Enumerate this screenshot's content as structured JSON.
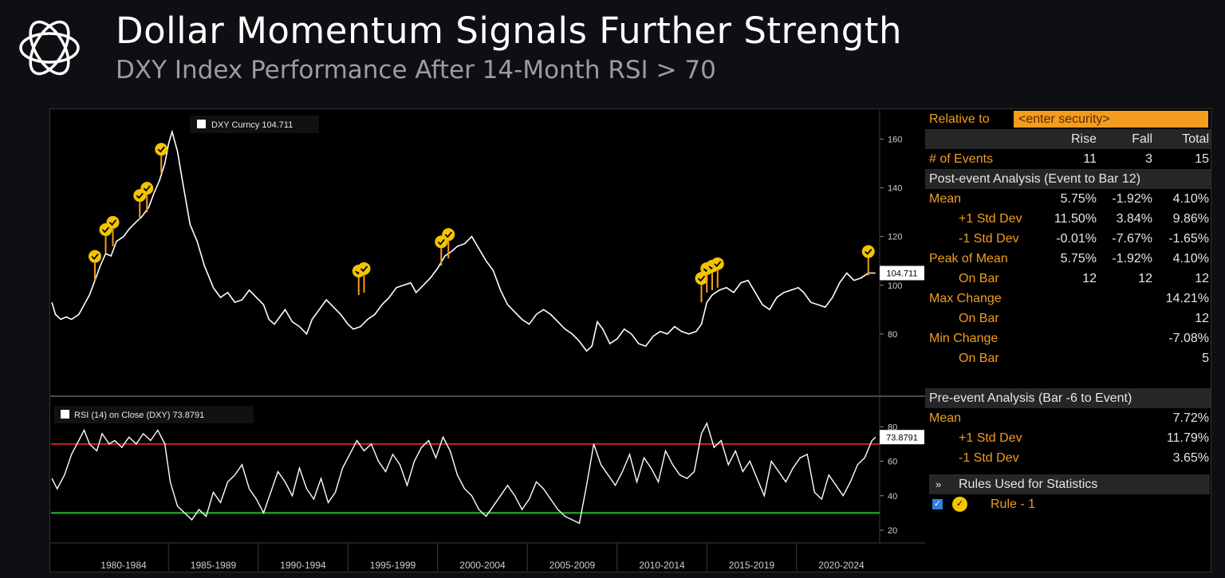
{
  "header": {
    "title": "Dollar Momentum Signals Further Strength",
    "subtitle": "DXY Index Performance After 14-Month RSI > 70"
  },
  "chart_data": [
    {
      "type": "line",
      "legend": "DXY Curncy 104.711",
      "last_value_label": "104.711",
      "ylim": [
        60,
        168
      ],
      "yticks": [
        80,
        100,
        120,
        140,
        160
      ],
      "x_range": [
        1978.5,
        2024.5
      ],
      "series": [
        {
          "name": "DXY Curncy",
          "color": "#ffffff",
          "x": [
            1978.5,
            1978.7,
            1979.0,
            1979.3,
            1979.6,
            1980.0,
            1980.3,
            1980.6,
            1980.9,
            1981.2,
            1981.5,
            1981.8,
            1982.1,
            1982.5,
            1982.8,
            1983.2,
            1983.5,
            1983.9,
            1984.2,
            1984.5,
            1984.8,
            1985.0,
            1985.2,
            1985.5,
            1985.8,
            1986.2,
            1986.6,
            1987.0,
            1987.5,
            1987.9,
            1988.3,
            1988.7,
            1989.1,
            1989.5,
            1989.9,
            1990.3,
            1990.6,
            1990.9,
            1991.2,
            1991.5,
            1991.9,
            1992.3,
            1992.7,
            1993.0,
            1993.4,
            1993.8,
            1994.2,
            1994.6,
            1995.0,
            1995.3,
            1995.7,
            1996.1,
            1996.5,
            1996.9,
            1997.3,
            1997.7,
            1998.1,
            1998.5,
            1998.8,
            1999.2,
            1999.6,
            2000.0,
            2000.4,
            2000.8,
            2001.1,
            2001.5,
            2001.9,
            2002.3,
            2002.7,
            2003.1,
            2003.5,
            2003.9,
            2004.3,
            2004.7,
            2005.1,
            2005.5,
            2005.9,
            2006.3,
            2006.7,
            2007.1,
            2007.5,
            2007.9,
            2008.3,
            2008.6,
            2008.9,
            2009.2,
            2009.6,
            2010.0,
            2010.4,
            2010.8,
            2011.2,
            2011.6,
            2012.0,
            2012.4,
            2012.8,
            2013.2,
            2013.6,
            2014.0,
            2014.4,
            2014.7,
            2015.0,
            2015.3,
            2015.7,
            2016.1,
            2016.5,
            2016.9,
            2017.3,
            2017.7,
            2018.1,
            2018.5,
            2018.9,
            2019.3,
            2019.7,
            2020.1,
            2020.4,
            2020.8,
            2021.2,
            2021.6,
            2022.0,
            2022.4,
            2022.8,
            2023.2,
            2023.6,
            2024.0,
            2024.4
          ],
          "values": [
            93,
            88,
            86,
            87,
            86,
            88,
            92,
            96,
            102,
            108,
            113,
            112,
            118,
            120,
            123,
            126,
            128,
            132,
            138,
            143,
            150,
            158,
            163,
            155,
            142,
            125,
            118,
            108,
            99,
            95,
            97,
            93,
            94,
            98,
            95,
            92,
            86,
            84,
            87,
            90,
            85,
            83,
            80,
            86,
            90,
            94,
            91,
            88,
            84,
            82,
            83,
            86,
            88,
            92,
            95,
            99,
            100,
            101,
            97,
            100,
            103,
            107,
            112,
            114,
            116,
            117,
            120,
            115,
            110,
            106,
            98,
            92,
            89,
            86,
            84,
            88,
            90,
            88,
            85,
            82,
            80,
            77,
            73,
            75,
            85,
            82,
            76,
            78,
            82,
            80,
            76,
            75,
            79,
            81,
            80,
            83,
            81,
            80,
            81,
            84,
            93,
            96,
            98,
            99,
            97,
            101,
            102,
            97,
            92,
            90,
            95,
            97,
            98,
            99,
            97,
            93,
            92,
            91,
            95,
            101,
            105,
            102,
            103,
            105,
            105
          ]
        }
      ],
      "markers": [
        {
          "x": 1980.9,
          "y": 102
        },
        {
          "x": 1981.5,
          "y": 113
        },
        {
          "x": 1981.9,
          "y": 116
        },
        {
          "x": 1983.4,
          "y": 127
        },
        {
          "x": 1983.8,
          "y": 130
        },
        {
          "x": 1984.6,
          "y": 146
        },
        {
          "x": 1995.6,
          "y": 96
        },
        {
          "x": 1995.9,
          "y": 97
        },
        {
          "x": 2000.2,
          "y": 108
        },
        {
          "x": 2000.6,
          "y": 111
        },
        {
          "x": 2014.7,
          "y": 93
        },
        {
          "x": 2015.0,
          "y": 97
        },
        {
          "x": 2015.3,
          "y": 98
        },
        {
          "x": 2015.6,
          "y": 99
        },
        {
          "x": 2024.0,
          "y": 104
        }
      ],
      "marker_color": "#f2c500"
    },
    {
      "type": "line",
      "legend": "RSI (14) on Close (DXY) 73.8791",
      "last_value_label": "73.8791",
      "ylim": [
        14,
        94
      ],
      "yticks": [
        20,
        40,
        60,
        80
      ],
      "x_range": [
        1978.5,
        2024.5
      ],
      "upper_line": {
        "value": 70,
        "color": "#d42020"
      },
      "lower_line": {
        "value": 30,
        "color": "#1fbf2a"
      },
      "series": [
        {
          "name": "RSI (14)",
          "color": "#ffffff",
          "x": [
            1978.5,
            1978.8,
            1979.2,
            1979.6,
            1980.0,
            1980.3,
            1980.6,
            1981.0,
            1981.3,
            1981.7,
            1982.0,
            1982.4,
            1982.8,
            1983.2,
            1983.6,
            1984.0,
            1984.4,
            1984.8,
            1985.1,
            1985.5,
            1985.9,
            1986.3,
            1986.7,
            1987.1,
            1987.5,
            1987.9,
            1988.3,
            1988.7,
            1989.1,
            1989.5,
            1989.9,
            1990.3,
            1990.7,
            1991.1,
            1991.5,
            1991.9,
            1992.3,
            1992.7,
            1993.1,
            1993.5,
            1993.9,
            1994.3,
            1994.7,
            1995.1,
            1995.5,
            1995.9,
            1996.3,
            1996.7,
            1997.1,
            1997.5,
            1997.9,
            1998.3,
            1998.7,
            1999.1,
            1999.5,
            1999.9,
            2000.3,
            2000.7,
            2001.1,
            2001.5,
            2001.9,
            2002.3,
            2002.7,
            2003.1,
            2003.5,
            2003.9,
            2004.3,
            2004.7,
            2005.1,
            2005.5,
            2005.9,
            2006.3,
            2006.7,
            2007.1,
            2007.5,
            2007.9,
            2008.3,
            2008.7,
            2009.1,
            2009.5,
            2009.9,
            2010.3,
            2010.7,
            2011.1,
            2011.5,
            2011.9,
            2012.3,
            2012.7,
            2013.1,
            2013.5,
            2013.9,
            2014.3,
            2014.7,
            2015.0,
            2015.4,
            2015.8,
            2016.2,
            2016.6,
            2017.0,
            2017.4,
            2017.8,
            2018.2,
            2018.6,
            2019.0,
            2019.4,
            2019.8,
            2020.2,
            2020.6,
            2021.0,
            2021.4,
            2021.8,
            2022.2,
            2022.6,
            2023.0,
            2023.4,
            2023.8,
            2024.2,
            2024.4
          ],
          "values": [
            50,
            44,
            52,
            64,
            72,
            78,
            70,
            66,
            76,
            70,
            72,
            68,
            74,
            70,
            76,
            72,
            78,
            70,
            48,
            34,
            30,
            26,
            32,
            28,
            42,
            36,
            48,
            52,
            58,
            44,
            38,
            30,
            42,
            54,
            48,
            40,
            56,
            44,
            38,
            50,
            36,
            42,
            56,
            64,
            72,
            66,
            70,
            60,
            54,
            64,
            58,
            46,
            60,
            68,
            72,
            62,
            74,
            66,
            52,
            44,
            40,
            32,
            28,
            34,
            40,
            46,
            40,
            32,
            38,
            48,
            44,
            38,
            32,
            28,
            26,
            24,
            46,
            70,
            58,
            52,
            46,
            54,
            64,
            48,
            62,
            56,
            48,
            66,
            58,
            52,
            50,
            54,
            76,
            82,
            68,
            72,
            58,
            66,
            54,
            60,
            50,
            40,
            60,
            54,
            48,
            56,
            62,
            64,
            42,
            38,
            52,
            46,
            40,
            48,
            58,
            62,
            72,
            74
          ]
        }
      ]
    }
  ],
  "x_axis": {
    "labels": [
      "1980-1984",
      "1985-1989",
      "1990-1994",
      "1995-1999",
      "2000-2004",
      "2005-2009",
      "2010-2014",
      "2015-2019",
      "2020-2024"
    ]
  },
  "stats": {
    "relative_label": "Relative to",
    "security_placeholder": "<enter security>",
    "columns": [
      "Rise",
      "Fall",
      "Total"
    ],
    "events": {
      "label": "# of Events",
      "values": [
        "11",
        "3",
        "15"
      ]
    },
    "post_header": "Post-event Analysis (Event to Bar 12)",
    "post_rows": [
      {
        "label": "Mean",
        "values": [
          "5.75%",
          "-1.92%",
          "4.10%"
        ],
        "indent": false
      },
      {
        "label": "+1 Std Dev",
        "values": [
          "11.50%",
          "3.84%",
          "9.86%"
        ],
        "indent": true
      },
      {
        "label": "-1 Std Dev",
        "values": [
          "-0.01%",
          "-7.67%",
          "-1.65%"
        ],
        "indent": true
      },
      {
        "label": "Peak of Mean",
        "values": [
          "5.75%",
          "-1.92%",
          "4.10%"
        ],
        "indent": false
      },
      {
        "label": "On Bar",
        "values": [
          "12",
          "12",
          "12"
        ],
        "indent": true
      },
      {
        "label": "Max Change",
        "values": [
          "",
          "",
          "14.21%"
        ],
        "indent": false
      },
      {
        "label": "On Bar",
        "values": [
          "",
          "",
          "12"
        ],
        "indent": true
      },
      {
        "label": "Min Change",
        "values": [
          "",
          "",
          "-7.08%"
        ],
        "indent": false
      },
      {
        "label": "On Bar",
        "values": [
          "",
          "",
          "5"
        ],
        "indent": true
      }
    ],
    "pre_header": "Pre-event Analysis (Bar -6 to Event)",
    "pre_rows": [
      {
        "label": "Mean",
        "value": "7.72%",
        "indent": false
      },
      {
        "label": "+1 Std Dev",
        "value": "11.79%",
        "indent": true
      },
      {
        "label": "-1 Std Dev",
        "value": "3.65%",
        "indent": true
      }
    ],
    "rules_header": "Rules Used for Statistics",
    "rule_label": "Rule - 1"
  },
  "colors": {
    "accent": "#f39c1e",
    "price_line": "#ffffff",
    "marker": "#f2c500",
    "rsi_upper": "#d42020",
    "rsi_lower": "#1fbf2a"
  }
}
